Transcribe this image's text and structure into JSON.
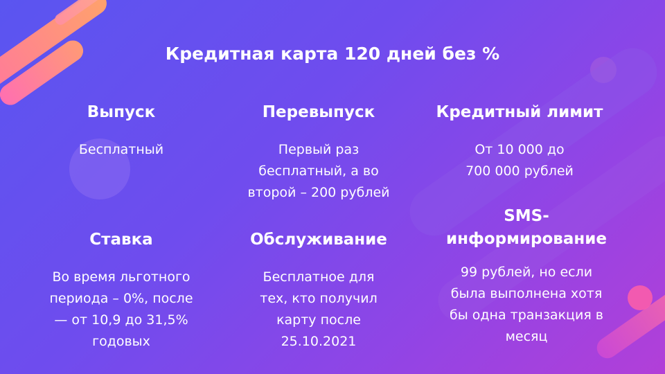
{
  "title": "Кредитная карта 120 дней без %",
  "cards": [
    {
      "heading": "Выпуск",
      "text": "Бесплатный"
    },
    {
      "heading": "Перевыпуск",
      "text": "Первый раз\nбесплатный, а во\nвторой – 200 рублей"
    },
    {
      "heading": "Кредитный лимит",
      "text": "От 10 000 до\n700 000 рублей"
    },
    {
      "heading": "Ставка",
      "text": "Во время льготного\nпериода – 0%, после\n— от 10,9 до 31,5%\nгодовых"
    },
    {
      "heading": "Обслуживание",
      "text": "Бесплатное для\nтех, кто получил\nкарту после\n25.10.2021"
    },
    {
      "heading": "SMS-\nинформирование",
      "text": "99 рублей, но если\nбыла выполнена хотя\nбы одна транзакция в\nмесяц"
    }
  ]
}
